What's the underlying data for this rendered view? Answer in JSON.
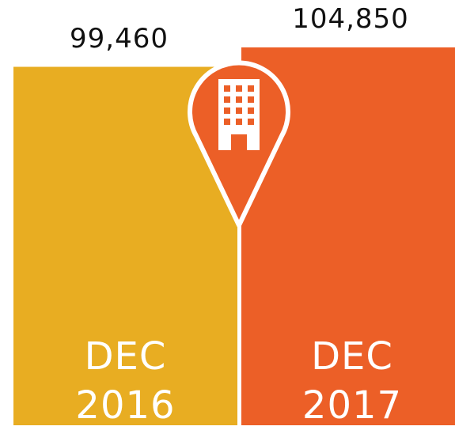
{
  "chart_data": {
    "type": "bar",
    "categories": [
      "DEC 2016",
      "DEC 2017"
    ],
    "values": [
      99460,
      104850
    ],
    "value_labels": [
      "99,460",
      "104,850"
    ],
    "colors": [
      "#e8ad22",
      "#ec5f27"
    ],
    "ylim": [
      0,
      118000
    ]
  }
}
